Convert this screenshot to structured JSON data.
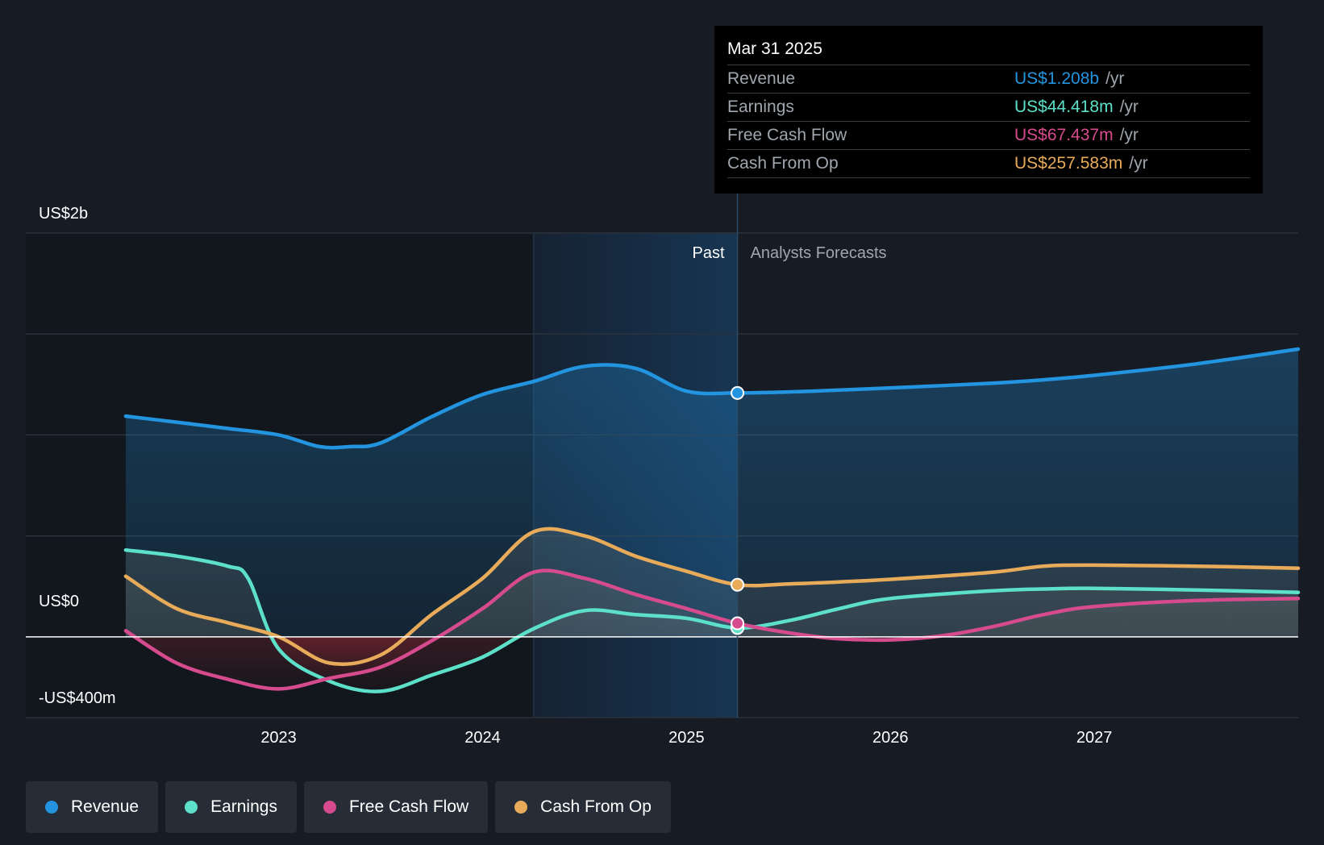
{
  "chart_data": {
    "type": "line",
    "title": "",
    "xlabel": "",
    "ylabel": "",
    "ylim": [
      -400,
      2000
    ],
    "y_tick_labels": [
      {
        "value": 2000,
        "label": "US$2b"
      },
      {
        "value": 0,
        "label": "US$0"
      },
      {
        "value": -400,
        "label": "-US$400m"
      }
    ],
    "x_ticks": [
      {
        "value": 2023,
        "label": "2023"
      },
      {
        "value": 2024,
        "label": "2024"
      },
      {
        "value": 2025,
        "label": "2025"
      },
      {
        "value": 2026,
        "label": "2026"
      },
      {
        "value": 2027,
        "label": "2027"
      }
    ],
    "xlim": [
      2021.76,
      2028.0
    ],
    "highlight_start": 2024.25,
    "forecast_start": 2025.25,
    "past_label": "Past",
    "forecast_label": "Analysts Forecasts",
    "series": [
      {
        "name": "Revenue",
        "color": "#2394df",
        "points": [
          [
            2022.25,
            1093
          ],
          [
            2022.5,
            1063
          ],
          [
            2022.75,
            1032
          ],
          [
            2023.0,
            1000
          ],
          [
            2023.2,
            942
          ],
          [
            2023.35,
            942
          ],
          [
            2023.5,
            960
          ],
          [
            2023.75,
            1090
          ],
          [
            2024.0,
            1200
          ],
          [
            2024.25,
            1265
          ],
          [
            2024.5,
            1340
          ],
          [
            2024.75,
            1330
          ],
          [
            2025.0,
            1217
          ],
          [
            2025.25,
            1208
          ],
          [
            2025.5,
            1213
          ],
          [
            2025.75,
            1222
          ],
          [
            2026.0,
            1233
          ],
          [
            2026.5,
            1256
          ],
          [
            2026.75,
            1273
          ],
          [
            2027.0,
            1295
          ],
          [
            2027.5,
            1352
          ],
          [
            2028.0,
            1425
          ]
        ]
      },
      {
        "name": "Earnings",
        "color": "#5ce0c9",
        "points": [
          [
            2022.25,
            430
          ],
          [
            2022.5,
            400
          ],
          [
            2022.75,
            350
          ],
          [
            2022.85,
            290
          ],
          [
            2023.0,
            -60
          ],
          [
            2023.25,
            -220
          ],
          [
            2023.5,
            -270
          ],
          [
            2023.75,
            -190
          ],
          [
            2024.0,
            -100
          ],
          [
            2024.25,
            40
          ],
          [
            2024.5,
            130
          ],
          [
            2024.75,
            110
          ],
          [
            2025.0,
            92
          ],
          [
            2025.25,
            44
          ],
          [
            2025.5,
            80
          ],
          [
            2025.75,
            140
          ],
          [
            2026.0,
            190
          ],
          [
            2026.5,
            228
          ],
          [
            2026.75,
            237
          ],
          [
            2027.0,
            240
          ],
          [
            2027.5,
            232
          ],
          [
            2028.0,
            220
          ]
        ]
      },
      {
        "name": "Free Cash Flow",
        "color": "#d64b8e",
        "points": [
          [
            2022.25,
            30
          ],
          [
            2022.5,
            -130
          ],
          [
            2022.75,
            -210
          ],
          [
            2023.0,
            -258
          ],
          [
            2023.25,
            -205
          ],
          [
            2023.5,
            -150
          ],
          [
            2023.75,
            -20
          ],
          [
            2024.0,
            140
          ],
          [
            2024.25,
            320
          ],
          [
            2024.5,
            290
          ],
          [
            2024.75,
            210
          ],
          [
            2025.0,
            140
          ],
          [
            2025.25,
            67
          ],
          [
            2025.5,
            20
          ],
          [
            2025.75,
            -10
          ],
          [
            2026.0,
            -15
          ],
          [
            2026.25,
            5
          ],
          [
            2026.5,
            50
          ],
          [
            2026.75,
            110
          ],
          [
            2027.0,
            150
          ],
          [
            2027.5,
            180
          ],
          [
            2028.0,
            190
          ]
        ]
      },
      {
        "name": "Cash From Op",
        "color": "#e8ab5a",
        "points": [
          [
            2022.25,
            300
          ],
          [
            2022.5,
            140
          ],
          [
            2022.75,
            70
          ],
          [
            2023.0,
            0
          ],
          [
            2023.25,
            -130
          ],
          [
            2023.5,
            -90
          ],
          [
            2023.75,
            110
          ],
          [
            2024.0,
            290
          ],
          [
            2024.25,
            520
          ],
          [
            2024.5,
            500
          ],
          [
            2024.75,
            400
          ],
          [
            2025.0,
            325
          ],
          [
            2025.25,
            258
          ],
          [
            2025.5,
            262
          ],
          [
            2025.75,
            272
          ],
          [
            2026.0,
            285
          ],
          [
            2026.5,
            320
          ],
          [
            2026.75,
            350
          ],
          [
            2027.0,
            355
          ],
          [
            2027.5,
            350
          ],
          [
            2028.0,
            340
          ]
        ]
      }
    ]
  },
  "tooltip": {
    "date": "Mar 31 2025",
    "rows": [
      {
        "name": "Revenue",
        "value": "US$1.208b",
        "unit": "/yr",
        "color": "#2394df"
      },
      {
        "name": "Earnings",
        "value": "US$44.418m",
        "unit": "/yr",
        "color": "#5ce0c9"
      },
      {
        "name": "Free Cash Flow",
        "value": "US$67.437m",
        "unit": "/yr",
        "color": "#d64b8e"
      },
      {
        "name": "Cash From Op",
        "value": "US$257.583m",
        "unit": "/yr",
        "color": "#e8ab5a"
      }
    ]
  },
  "legend": [
    {
      "label": "Revenue",
      "color": "#2394df"
    },
    {
      "label": "Earnings",
      "color": "#5ce0c9"
    },
    {
      "label": "Free Cash Flow",
      "color": "#d64b8e"
    },
    {
      "label": "Cash From Op",
      "color": "#e8ab5a"
    }
  ]
}
